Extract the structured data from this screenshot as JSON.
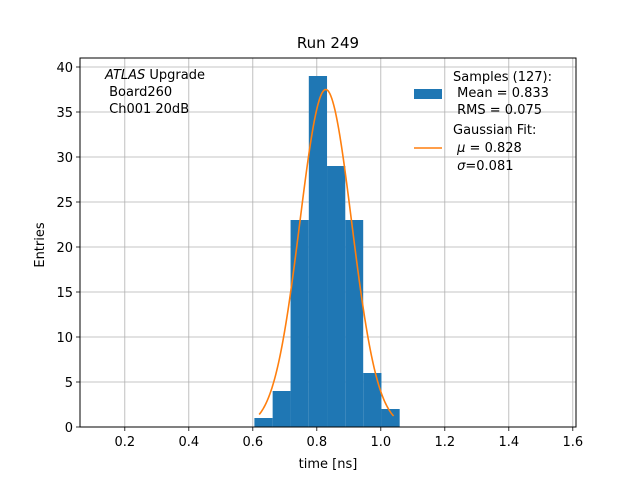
{
  "chart_data": {
    "type": "bar",
    "title": "Run 249",
    "xlabel": "time [ns]",
    "ylabel": "Entries",
    "xlim": [
      0.06,
      1.61
    ],
    "ylim": [
      0,
      41
    ],
    "xticks": [
      0.2,
      0.4,
      0.6,
      0.8,
      1.0,
      1.2,
      1.4,
      1.6
    ],
    "xtick_labels": [
      "0.2",
      "0.4",
      "0.6",
      "0.8",
      "1.0",
      "1.2",
      "1.4",
      "1.6"
    ],
    "yticks": [
      0,
      5,
      10,
      15,
      20,
      25,
      30,
      35,
      40
    ],
    "ytick_labels": [
      "0",
      "5",
      "10",
      "15",
      "20",
      "25",
      "30",
      "35",
      "40"
    ],
    "grid": true,
    "histogram": {
      "name": "Samples (127):",
      "color": "#1f77b4",
      "bins": [
        {
          "x0": 0.605,
          "x1": 0.662,
          "count": 1
        },
        {
          "x0": 0.662,
          "x1": 0.718,
          "count": 4
        },
        {
          "x0": 0.718,
          "x1": 0.775,
          "count": 23
        },
        {
          "x0": 0.775,
          "x1": 0.832,
          "count": 39
        },
        {
          "x0": 0.832,
          "x1": 0.889,
          "count": 29
        },
        {
          "x0": 0.889,
          "x1": 0.945,
          "count": 23
        },
        {
          "x0": 0.945,
          "x1": 1.002,
          "count": 6
        },
        {
          "x0": 1.002,
          "x1": 1.059,
          "count": 2
        }
      ]
    },
    "fit": {
      "name": "Gaussian Fit:",
      "color": "#ff7f0e",
      "amplitude": 37.5,
      "mu": 0.828,
      "sigma": 0.081,
      "x_range": [
        0.62,
        1.04
      ]
    },
    "annotation": {
      "atlas": "ATLAS",
      "line1_rest": " Upgrade",
      "line2": " Board260",
      "line3": " Ch001 20dB"
    },
    "legend": {
      "placement": "top-right",
      "samples_label": "Samples (127):",
      "samples_mean": " Mean = 0.833",
      "samples_rms": " RMS = 0.075",
      "fit_label": "Gaussian Fit:",
      "fit_mu_symbol": "μ",
      "fit_mu_rest": " = 0.828",
      "fit_sigma_symbol": "σ",
      "fit_sigma_rest": "=0.081"
    }
  }
}
